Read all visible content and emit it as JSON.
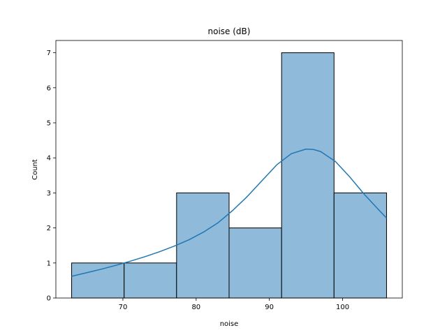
{
  "chart_data": {
    "type": "bar",
    "subtype": "histogram-with-kde",
    "title": "noise (dB)",
    "xlabel": "noise",
    "ylabel": "Count",
    "bins": [
      {
        "start": 63.0,
        "end": 70.17,
        "count": 1
      },
      {
        "start": 70.17,
        "end": 77.33,
        "count": 1
      },
      {
        "start": 77.33,
        "end": 84.5,
        "count": 3
      },
      {
        "start": 84.5,
        "end": 91.67,
        "count": 2
      },
      {
        "start": 91.67,
        "end": 98.83,
        "count": 7
      },
      {
        "start": 98.83,
        "end": 106.0,
        "count": 3
      }
    ],
    "kde": {
      "x": [
        63,
        65,
        67,
        69,
        71,
        73,
        75,
        77,
        79,
        81,
        83,
        85,
        87,
        89,
        91,
        93,
        95,
        96,
        97,
        99,
        101,
        103,
        105,
        106
      ],
      "y": [
        0.62,
        0.72,
        0.82,
        0.93,
        1.05,
        1.18,
        1.32,
        1.48,
        1.66,
        1.88,
        2.15,
        2.5,
        2.9,
        3.35,
        3.8,
        4.12,
        4.25,
        4.24,
        4.18,
        3.9,
        3.45,
        2.95,
        2.5,
        2.28
      ]
    },
    "xticks": [
      70,
      80,
      90,
      100
    ],
    "yticks": [
      0,
      1,
      2,
      3,
      4,
      5,
      6,
      7
    ],
    "xlim": [
      60.85,
      108.15
    ],
    "ylim": [
      0,
      7.35
    ],
    "bar_color": "#8fbad9",
    "bar_edge_color": "#000000",
    "kde_color": "#1f77b4",
    "grid": false,
    "legend": "none"
  }
}
